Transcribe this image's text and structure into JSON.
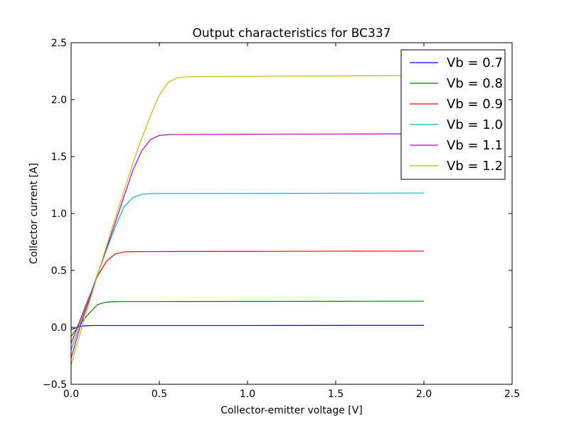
{
  "chart_data": {
    "type": "line",
    "title": "Output characteristics for BC337",
    "xlabel": "Collector-emitter voltage [V]",
    "ylabel": "Collector current [A]",
    "xlim": [
      0.0,
      2.5
    ],
    "ylim": [
      -0.5,
      2.5
    ],
    "xticks": [
      0.0,
      0.5,
      1.0,
      1.5,
      2.0,
      2.5
    ],
    "xtick_labels": [
      "0.0",
      "0.5",
      "1.0",
      "1.5",
      "2.0",
      "2.5"
    ],
    "yticks": [
      -0.5,
      0.0,
      0.5,
      1.0,
      1.5,
      2.0,
      2.5
    ],
    "ytick_labels": [
      "−0.5",
      "0.0",
      "0.5",
      "1.0",
      "1.5",
      "2.0",
      "2.5"
    ],
    "grid": false,
    "legend_position": "top-right",
    "series": [
      {
        "name": "Vb = 0.7",
        "color": "#0000ff",
        "x": [
          0.0,
          0.05,
          0.1,
          0.15,
          0.2,
          0.3,
          0.5,
          1.0,
          1.5,
          2.0
        ],
        "y": [
          -0.02,
          0.01,
          0.015,
          0.016,
          0.016,
          0.016,
          0.016,
          0.016,
          0.017,
          0.017
        ]
      },
      {
        "name": "Vb = 0.8",
        "color": "#008000",
        "x": [
          0.0,
          0.05,
          0.1,
          0.15,
          0.2,
          0.25,
          0.3,
          0.5,
          1.0,
          1.5,
          2.0
        ],
        "y": [
          -0.08,
          0.03,
          0.12,
          0.2,
          0.222,
          0.226,
          0.227,
          0.227,
          0.228,
          0.229,
          0.23
        ]
      },
      {
        "name": "Vb = 0.9",
        "color": "#ff0000",
        "x": [
          0.0,
          0.05,
          0.1,
          0.15,
          0.2,
          0.25,
          0.3,
          0.35,
          0.5,
          1.0,
          1.5,
          2.0
        ],
        "y": [
          -0.14,
          0.06,
          0.26,
          0.45,
          0.58,
          0.645,
          0.662,
          0.665,
          0.666,
          0.667,
          0.669,
          0.67
        ]
      },
      {
        "name": "Vb = 1.0",
        "color": "#00bfbf",
        "x": [
          0.0,
          0.05,
          0.1,
          0.15,
          0.2,
          0.25,
          0.3,
          0.35,
          0.4,
          0.45,
          0.5,
          1.0,
          1.5,
          2.0
        ],
        "y": [
          -0.2,
          0.03,
          0.25,
          0.47,
          0.68,
          0.88,
          1.06,
          1.14,
          1.168,
          1.174,
          1.175,
          1.176,
          1.178,
          1.18
        ]
      },
      {
        "name": "Vb = 1.1",
        "color": "#bf00bf",
        "x": [
          0.0,
          0.05,
          0.1,
          0.15,
          0.2,
          0.25,
          0.3,
          0.35,
          0.4,
          0.45,
          0.5,
          0.55,
          0.6,
          1.0,
          1.5,
          2.0
        ],
        "y": [
          -0.27,
          0.0,
          0.23,
          0.46,
          0.69,
          0.92,
          1.15,
          1.38,
          1.55,
          1.65,
          1.685,
          1.692,
          1.694,
          1.696,
          1.698,
          1.7
        ]
      },
      {
        "name": "Vb = 1.2",
        "color": "#bfbf00",
        "x": [
          0.0,
          0.05,
          0.1,
          0.15,
          0.2,
          0.25,
          0.3,
          0.35,
          0.4,
          0.45,
          0.5,
          0.55,
          0.6,
          0.65,
          0.7,
          1.0,
          1.5,
          2.0
        ],
        "y": [
          -0.33,
          -0.06,
          0.2,
          0.46,
          0.71,
          0.96,
          1.2,
          1.44,
          1.66,
          1.86,
          2.04,
          2.15,
          2.19,
          2.2,
          2.202,
          2.205,
          2.208,
          2.212
        ]
      }
    ]
  }
}
